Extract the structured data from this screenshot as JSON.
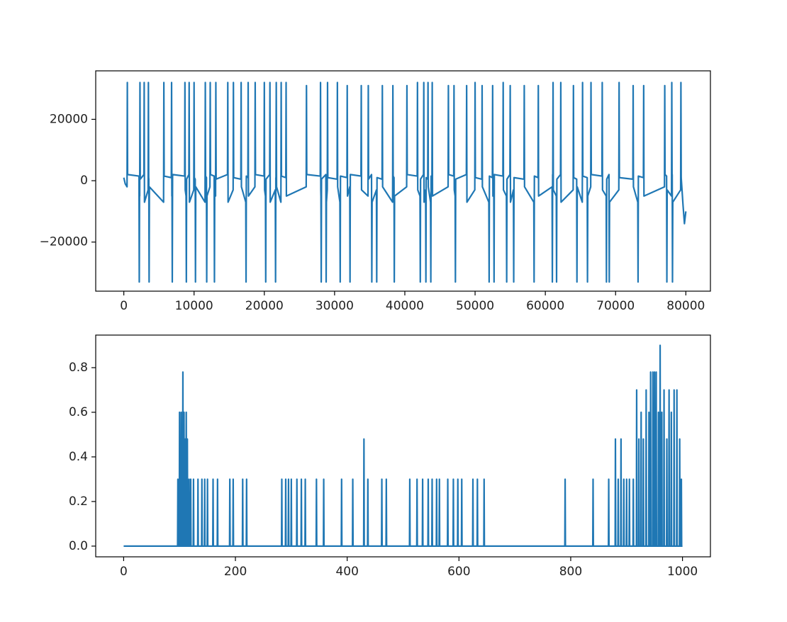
{
  "chart_data": [
    {
      "type": "line",
      "color": "#1f77b4",
      "xlim": [
        -4000,
        83500
      ],
      "ylim": [
        -36000,
        35800
      ],
      "xticks": [
        0,
        10000,
        20000,
        30000,
        40000,
        50000,
        60000,
        70000,
        80000
      ],
      "yticks": [
        {
          "value": -20000,
          "label": "−20000"
        },
        0,
        20000
      ],
      "x": [
        0,
        200,
        460,
        500,
        540,
        2160,
        2200,
        2240,
        2260,
        2300,
        2340,
        2860,
        2900,
        2940,
        3460,
        3500,
        3540,
        3560,
        3600,
        3640,
        5660,
        5700,
        5740,
        6760,
        6800,
        6840,
        6860,
        6900,
        6940,
        8660,
        8700,
        8740,
        8860,
        8900,
        8940,
        9260,
        9300,
        9340,
        9960,
        10000,
        10040,
        10160,
        10200,
        10240,
        11560,
        11600,
        11640,
        11760,
        11800,
        11840,
        12260,
        12300,
        12340,
        12860,
        12900,
        12940,
        13060,
        13100,
        13140,
        14760,
        14800,
        14840,
        15560,
        15600,
        15640,
        16660,
        16700,
        16740,
        17360,
        17400,
        17440,
        17660,
        17700,
        17740,
        18660,
        18700,
        18740,
        19960,
        20000,
        20040,
        20160,
        20200,
        20240,
        20760,
        20800,
        20840,
        21560,
        21600,
        21640,
        21660,
        21700,
        21740,
        22360,
        22400,
        22440,
        23060,
        23100,
        23140,
        25960,
        26000,
        26040,
        27960,
        28000,
        28040,
        28060,
        28100,
        28140,
        28760,
        28800,
        28840,
        28960,
        29000,
        29040,
        30360,
        30400,
        30440,
        30760,
        30800,
        30840,
        31760,
        31800,
        31840,
        32160,
        32200,
        32240,
        33760,
        33800,
        33840,
        34760,
        34800,
        34840,
        35260,
        35300,
        35340,
        35960,
        36000,
        36040,
        36760,
        36800,
        36840,
        38260,
        38300,
        38340,
        38460,
        38500,
        38540,
        40260,
        40300,
        40340,
        41760,
        41800,
        41840,
        42160,
        42200,
        42240,
        42660,
        42700,
        42740,
        42960,
        43000,
        43040,
        43260,
        43300,
        43340,
        43660,
        43700,
        43740,
        43860,
        43900,
        43940,
        46160,
        46200,
        46240,
        46960,
        47000,
        47040,
        47160,
        47200,
        47240,
        48760,
        48800,
        48840,
        49960,
        50000,
        50040,
        50960,
        51000,
        51040,
        51960,
        52000,
        52040,
        52460,
        52500,
        52540,
        52660,
        52700,
        52740,
        53960,
        54000,
        54040,
        54460,
        54500,
        54540,
        54960,
        55000,
        55040,
        55460,
        55500,
        55540,
        56960,
        57000,
        57040,
        58360,
        58400,
        58440,
        58960,
        59000,
        59040,
        60960,
        61000,
        61040,
        61060,
        61100,
        61140,
        61560,
        61600,
        61640,
        62160,
        62200,
        62240,
        63960,
        64000,
        64040,
        64460,
        64500,
        64540,
        65260,
        65300,
        65340,
        65960,
        66000,
        66040,
        66460,
        66500,
        66540,
        68060,
        68100,
        68140,
        68660,
        68700,
        68740,
        69060,
        69100,
        69140,
        70460,
        70500,
        70540,
        72460,
        72500,
        72540,
        73160,
        73200,
        73240,
        73960,
        74000,
        74040,
        76960,
        77000,
        77040,
        77260,
        77300,
        77340,
        77960,
        78000,
        78040,
        78060,
        78100,
        78140,
        79260,
        79300,
        79340,
        79600,
        79800,
        80000
      ],
      "values": [
        1000,
        -1000,
        -2000,
        32000,
        2000,
        1500,
        -33000,
        -3000,
        -5000,
        32000,
        500,
        2000,
        32000,
        -7000,
        -3000,
        32000,
        1000,
        500,
        -33000,
        -2000,
        -7000,
        32000,
        1500,
        1000,
        32000,
        -5000,
        -2000,
        -33000,
        2000,
        1500,
        32000,
        -3000,
        -5000,
        -33000,
        500,
        2000,
        32000,
        -7000,
        -3000,
        32000,
        1000,
        500,
        -33000,
        -2000,
        -7000,
        32000,
        1500,
        1000,
        -33000,
        -5000,
        -2000,
        32000,
        2000,
        1500,
        -33000,
        -3000,
        -5000,
        32000,
        500,
        2000,
        32000,
        -7000,
        -3000,
        32000,
        1000,
        500,
        32000,
        -2000,
        -7000,
        -33000,
        1500,
        1000,
        32000,
        -5000,
        -2000,
        32000,
        2000,
        1500,
        32000,
        -3000,
        -5000,
        -33000,
        500,
        2000,
        32000,
        -7000,
        -3000,
        -33000,
        1000,
        500,
        32000,
        -2000,
        -7000,
        32000,
        1500,
        1000,
        32000,
        -5000,
        -2000,
        31000,
        2000,
        1500,
        32000,
        -3000,
        -5000,
        -33000,
        500,
        2000,
        -33000,
        -7000,
        -3000,
        32000,
        1000,
        500,
        32000,
        -2000,
        -7000,
        -33000,
        1500,
        1000,
        31000,
        -5000,
        -2000,
        -33000,
        2000,
        1500,
        31000,
        -3000,
        -5000,
        31000,
        500,
        2000,
        -33000,
        -7000,
        -3000,
        -33000,
        1000,
        500,
        31000,
        -2000,
        -7000,
        31000,
        1500,
        1000,
        -33000,
        -5000,
        -2000,
        31000,
        2000,
        1500,
        32000,
        -3000,
        -5000,
        -33000,
        500,
        2000,
        32000,
        -7000,
        -3000,
        -33000,
        1000,
        500,
        32000,
        -2000,
        -7000,
        -33000,
        1500,
        1000,
        32000,
        -5000,
        -2000,
        31000,
        2000,
        1500,
        31000,
        -3000,
        -5000,
        -33000,
        500,
        2000,
        31000,
        -7000,
        -3000,
        32000,
        1000,
        500,
        31000,
        -2000,
        -7000,
        -33000,
        1500,
        1000,
        31000,
        -5000,
        -2000,
        -33000,
        2000,
        1500,
        32000,
        -3000,
        -5000,
        -33000,
        500,
        2000,
        31000,
        -7000,
        -3000,
        -33000,
        1000,
        500,
        31000,
        -2000,
        -7000,
        -33000,
        1500,
        1000,
        31000,
        -5000,
        -2000,
        -33000,
        2000,
        1500,
        32000,
        -3000,
        -5000,
        -33000,
        500,
        2000,
        32000,
        -7000,
        -3000,
        31000,
        1000,
        500,
        -33000,
        -2000,
        -7000,
        32000,
        1500,
        1000,
        -33000,
        -5000,
        -2000,
        32000,
        2000,
        1500,
        32000,
        -3000,
        -5000,
        -33000,
        500,
        2000,
        -33000,
        -7000,
        -3000,
        32000,
        1000,
        500,
        31000,
        -2000,
        -7000,
        -33000,
        1500,
        1000,
        31000,
        -5000,
        -2000,
        31000,
        2000,
        1500,
        -33000,
        -3000,
        -5000,
        32000,
        500,
        2000,
        -33000,
        -7000,
        -3000,
        32000,
        1000,
        -8000,
        -14000,
        -10000
      ]
    },
    {
      "type": "line",
      "color": "#1f77b4",
      "xlim": [
        -50,
        1050
      ],
      "ylim": [
        -0.048,
        0.946
      ],
      "xticks": [
        0,
        200,
        400,
        600,
        800,
        1000
      ],
      "yticks": [
        {
          "value": 0,
          "label": "0.0"
        },
        0.2,
        0.4,
        0.6,
        0.8
      ],
      "x": [
        0,
        96.5,
        97,
        97.5,
        99.5,
        100,
        100.5,
        102.5,
        103,
        103.5,
        105.5,
        106,
        106.5,
        107.5,
        108,
        108.5,
        109.5,
        110,
        110.5,
        111.5,
        112,
        112.5,
        113.5,
        114,
        114.5,
        116.5,
        117,
        117.5,
        119.5,
        120,
        120.5,
        124.5,
        125,
        125.5,
        132.5,
        133,
        133.5,
        139.5,
        140,
        140.5,
        144.5,
        145,
        145.5,
        149.5,
        150,
        150.5,
        159.5,
        160,
        160.5,
        167.5,
        168,
        168.5,
        189.5,
        190,
        190.5,
        195.5,
        196,
        196.5,
        212.5,
        213,
        213.5,
        219.5,
        220,
        220.5,
        282.5,
        283,
        283.5,
        289.5,
        290,
        290.5,
        294.5,
        295,
        295.5,
        299.5,
        300,
        300.5,
        309.5,
        310,
        310.5,
        317.5,
        318,
        318.5,
        324.5,
        325,
        325.5,
        344.5,
        345,
        345.5,
        357.5,
        358,
        358.5,
        389.5,
        390,
        390.5,
        409.5,
        410,
        410.5,
        429.5,
        430,
        430.5,
        436.5,
        437,
        437.5,
        461.5,
        462,
        462.5,
        469.5,
        470,
        470.5,
        511.5,
        512,
        512.5,
        524.5,
        525,
        525.5,
        534.5,
        535,
        535.5,
        544.5,
        545,
        545.5,
        551.5,
        552,
        552.5,
        559.5,
        560,
        560.5,
        564.5,
        565,
        565.5,
        579.5,
        580,
        580.5,
        589.5,
        590,
        590.5,
        597.5,
        598,
        598.5,
        604.5,
        605,
        605.5,
        624.5,
        625,
        625.5,
        632.5,
        633,
        633.5,
        644.5,
        645,
        645.5,
        789.5,
        790,
        790.5,
        839.5,
        840,
        840.5,
        867.5,
        868,
        868.5,
        879.5,
        880,
        880.5,
        884.5,
        885,
        885.5,
        889.5,
        890,
        890.5,
        894.5,
        895,
        895.5,
        899.5,
        900,
        900.5,
        904.5,
        905,
        905.5,
        911.5,
        912,
        912.5,
        917.5,
        918,
        918.5,
        921.5,
        922,
        922.5,
        925.5,
        926,
        926.5,
        929.5,
        930,
        930.5,
        934.5,
        935,
        935.5,
        939.5,
        940,
        940.5,
        942.5,
        943,
        943.5,
        946.5,
        947,
        947.5,
        949.5,
        950,
        950.5,
        952.5,
        953,
        953.5,
        956.5,
        957,
        957.5,
        959.5,
        960,
        960.5,
        962.5,
        963,
        963.5,
        966.5,
        967,
        967.5,
        971.5,
        972,
        972.5,
        975.5,
        976,
        976.5,
        979.5,
        980,
        980.5,
        984.5,
        985,
        985.5,
        989.5,
        990,
        990.5,
        994.5,
        995,
        995.5,
        997.5,
        998,
        998.5,
        1000
      ],
      "values": [
        0,
        0,
        0.3,
        0,
        0,
        0.6,
        0,
        0,
        0.6,
        0,
        0,
        0.78,
        0,
        0,
        0.6,
        0,
        0,
        0.48,
        0,
        0,
        0.6,
        0,
        0,
        0.48,
        0,
        0,
        0.3,
        0,
        0,
        0.3,
        0,
        0,
        0.3,
        0,
        0,
        0.3,
        0,
        0,
        0.3,
        0,
        0,
        0.3,
        0,
        0,
        0.3,
        0,
        0,
        0.3,
        0,
        0,
        0.3,
        0,
        0,
        0.3,
        0,
        0,
        0.3,
        0,
        0,
        0.3,
        0,
        0,
        0.3,
        0,
        0,
        0.3,
        0,
        0,
        0.3,
        0,
        0,
        0.3,
        0,
        0,
        0.3,
        0,
        0,
        0.3,
        0,
        0,
        0.3,
        0,
        0,
        0.3,
        0,
        0,
        0.3,
        0,
        0,
        0.3,
        0,
        0,
        0.3,
        0,
        0,
        0.3,
        0,
        0,
        0.48,
        0,
        0,
        0.3,
        0,
        0,
        0.3,
        0,
        0,
        0.3,
        0,
        0,
        0.3,
        0,
        0,
        0.3,
        0,
        0,
        0.3,
        0,
        0,
        0.3,
        0,
        0,
        0.3,
        0,
        0,
        0.3,
        0,
        0,
        0.3,
        0,
        0,
        0.3,
        0,
        0,
        0.3,
        0,
        0,
        0.3,
        0,
        0,
        0.3,
        0,
        0,
        0.3,
        0,
        0,
        0.3,
        0,
        0,
        0.3,
        0,
        0,
        0.3,
        0,
        0,
        0.3,
        0,
        0,
        0.3,
        0,
        0,
        0.48,
        0,
        0,
        0.3,
        0,
        0,
        0.48,
        0,
        0,
        0.3,
        0,
        0,
        0.3,
        0,
        0,
        0.3,
        0,
        0,
        0.3,
        0,
        0,
        0.7,
        0,
        0,
        0.48,
        0,
        0,
        0.6,
        0,
        0,
        0.48,
        0,
        0,
        0.7,
        0,
        0,
        0.6,
        0,
        0,
        0.78,
        0,
        0,
        0.78,
        0,
        0,
        0.78,
        0,
        0,
        0.78,
        0,
        0,
        0.6,
        0,
        0,
        0.9,
        0,
        0,
        0.6,
        0,
        0,
        0.7,
        0,
        0,
        0.48,
        0,
        0,
        0.7,
        0,
        0,
        0.6,
        0,
        0,
        0.7,
        0,
        0,
        0.7,
        0,
        0,
        0.48,
        0,
        0,
        0.3,
        0,
        0
      ]
    }
  ]
}
